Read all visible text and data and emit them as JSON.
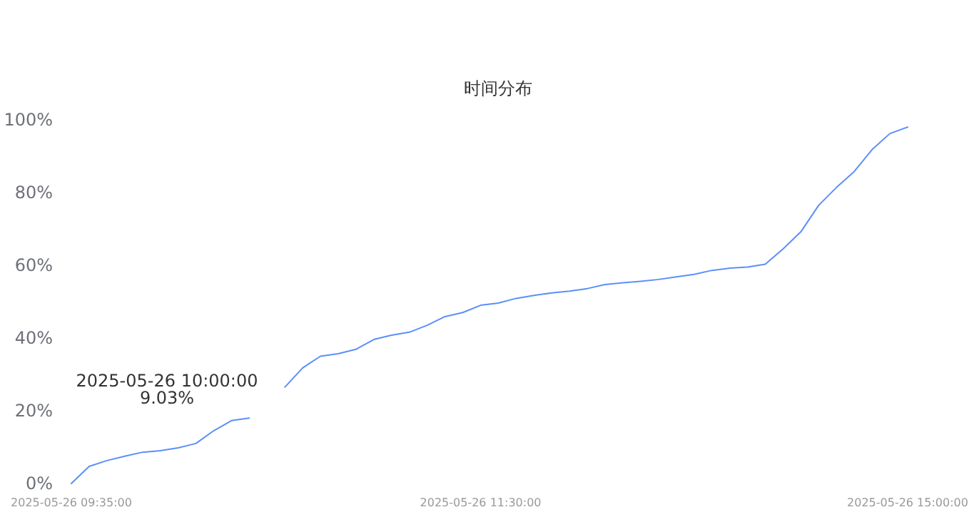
{
  "chart_data": {
    "type": "line",
    "title": "时间分布",
    "categories": [
      "2025-05-26 09:35:00",
      null,
      null,
      null,
      null,
      null,
      null,
      null,
      null,
      null,
      null,
      null,
      null,
      null,
      null,
      null,
      null,
      null,
      null,
      null,
      null,
      null,
      null,
      "2025-05-26 11:30:00",
      null,
      null,
      null,
      null,
      null,
      null,
      null,
      null,
      null,
      null,
      null,
      null,
      null,
      null,
      null,
      null,
      null,
      null,
      null,
      null,
      null,
      null,
      null,
      "2025-05-26 15:00:00"
    ],
    "series": [
      {
        "color": "#5b8ff9",
        "values": [
          0,
          4.7,
          6.3,
          7.5,
          8.6,
          9,
          9.8,
          11,
          14.5,
          17.3,
          18,
          null,
          26.5,
          31.8,
          35,
          35.7,
          36.9,
          39.6,
          40.8,
          41.6,
          43.5,
          45.9,
          47,
          49,
          49.6,
          50.9,
          51.7,
          52.4,
          52.9,
          53.6,
          54.7,
          55.2,
          55.6,
          56.1,
          56.8,
          57.5,
          58.6,
          59.2,
          59.5,
          60.3,
          64.5,
          69.2,
          76.5,
          81.4,
          85.8,
          91.8,
          96.2,
          98
        ]
      }
    ],
    "ylim": [
      0,
      100
    ],
    "yticks": [
      {
        "value": 0,
        "label": "0%"
      },
      {
        "value": 20,
        "label": "20%"
      },
      {
        "value": 40,
        "label": "40%"
      },
      {
        "value": 60,
        "label": "60%"
      },
      {
        "value": 80,
        "label": "80%"
      },
      {
        "value": 100,
        "label": "100%"
      }
    ],
    "annotations": [
      "2025-05-26 10:00:00\n9.03%"
    ],
    "grid": false,
    "marker": "none",
    "line_style": "solid"
  }
}
